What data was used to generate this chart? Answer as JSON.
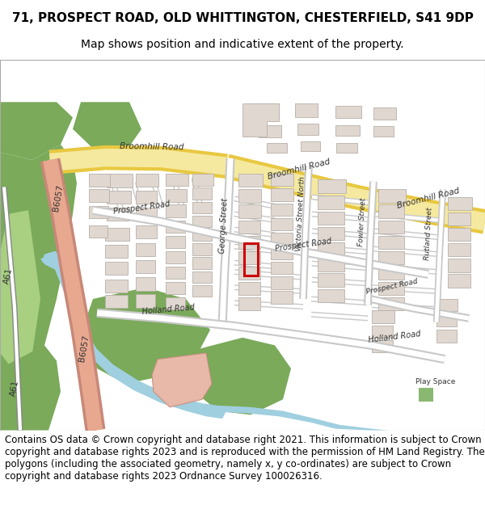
{
  "title_line1": "71, PROSPECT ROAD, OLD WHITTINGTON, CHESTERFIELD, S41 9DP",
  "title_line2": "Map shows position and indicative extent of the property.",
  "title_fontsize": 11,
  "subtitle_fontsize": 10,
  "copyright_text": "Contains OS data © Crown copyright and database right 2021. This information is subject to Crown copyright and database rights 2023 and is reproduced with the permission of HM Land Registry. The polygons (including the associated geometry, namely x, y co-ordinates) are subject to Crown copyright and database rights 2023 Ordnance Survey 100026316.",
  "copyright_fontsize": 8.5,
  "map_bg": "#f2ede4",
  "road_yellow": "#f5e9a0",
  "road_yellow_border": "#e8c840",
  "road_white": "#ffffff",
  "road_gray": "#c8c8c8",
  "green_dark": "#7aaa5a",
  "green_med": "#8ab870",
  "green_light_stripe": "#a8d080",
  "water_blue": "#a0cfe0",
  "building_fill": "#e0d8d0",
  "building_stroke": "#b8b0a8",
  "road_salmon": "#e8a890",
  "road_salmon_border": "#c88878",
  "salmon_fill": "#e8b8a8",
  "highlight_red": "#cc0000",
  "bg_white": "#ffffff"
}
